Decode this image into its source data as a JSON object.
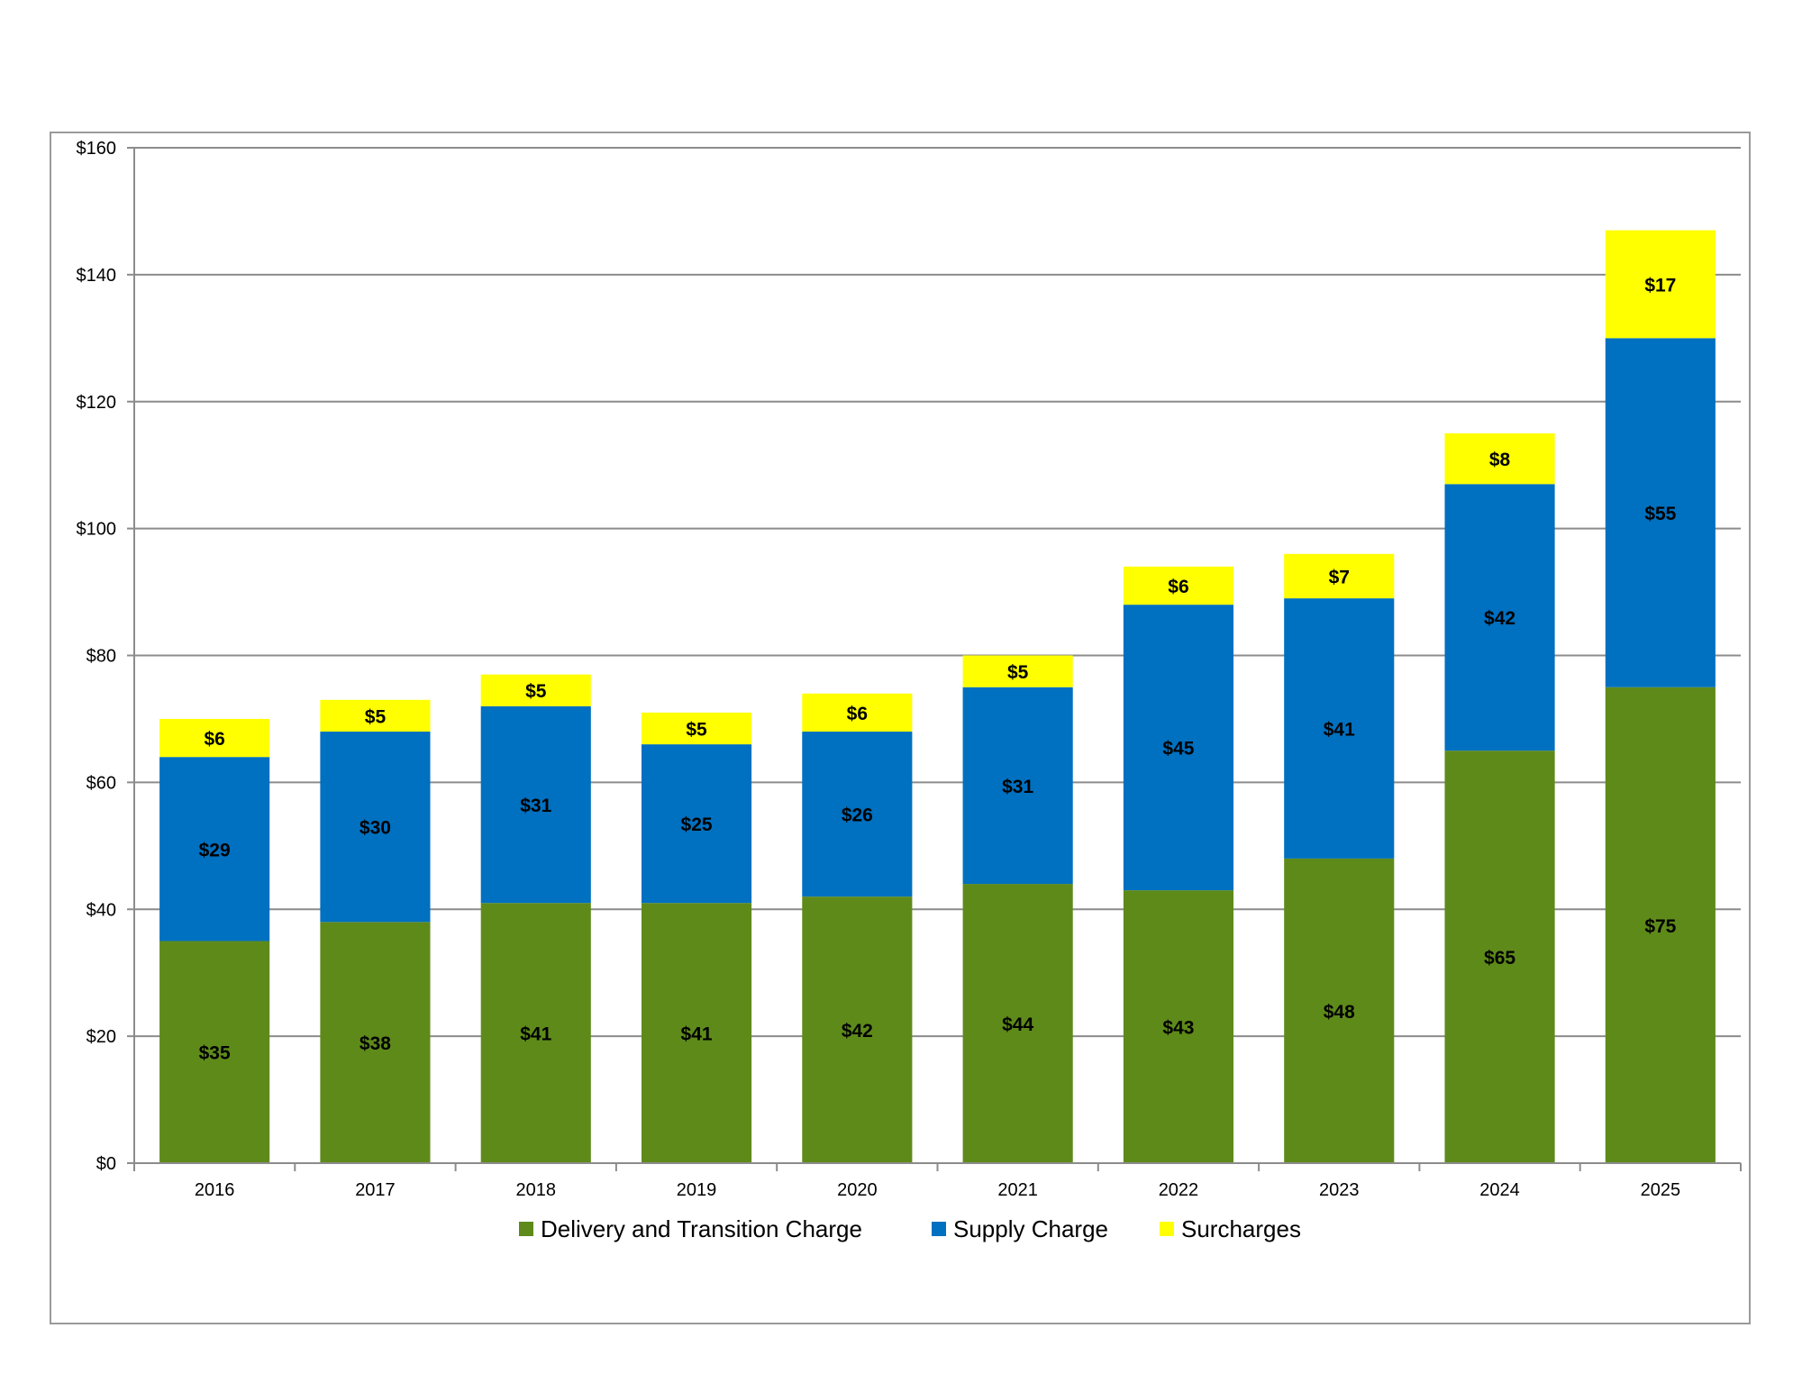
{
  "chart_data": {
    "type": "bar",
    "stacked": true,
    "title": "",
    "xlabel": "",
    "ylabel": "",
    "categories": [
      "2016",
      "2017",
      "2018",
      "2019",
      "2020",
      "2021",
      "2022",
      "2023",
      "2024",
      "2025"
    ],
    "series": [
      {
        "name": "Delivery and Transition Charge",
        "color": "#5E8A1A",
        "values": [
          35,
          38,
          41,
          41,
          42,
          44,
          43,
          48,
          65,
          75
        ],
        "labels": [
          "$35",
          "$38",
          "$41",
          "$41",
          "$42",
          "$44",
          "$43",
          "$48",
          "$65",
          "$75"
        ]
      },
      {
        "name": "Supply Charge",
        "color": "#0070C0",
        "values": [
          29,
          30,
          31,
          25,
          26,
          31,
          45,
          41,
          42,
          55
        ],
        "labels": [
          "$29",
          "$30",
          "$31",
          "$25",
          "$26",
          "$31",
          "$45",
          "$41",
          "$42",
          "$55"
        ]
      },
      {
        "name": "Surcharges",
        "color": "#FFFF00",
        "values": [
          6,
          5,
          5,
          5,
          6,
          5,
          6,
          7,
          8,
          17
        ],
        "labels": [
          "$6",
          "$5",
          "$5",
          "$5",
          "$6",
          "$5",
          "$6",
          "$7",
          "$8",
          "$17"
        ]
      }
    ],
    "ylim": [
      0,
      160
    ],
    "yticks": [
      0,
      20,
      40,
      60,
      80,
      100,
      120,
      140,
      160
    ],
    "ytick_labels": [
      "$0",
      "$20",
      "$40",
      "$60",
      "$80",
      "$100",
      "$120",
      "$140",
      "$160"
    ],
    "grid": true,
    "legend_position": "bottom"
  }
}
